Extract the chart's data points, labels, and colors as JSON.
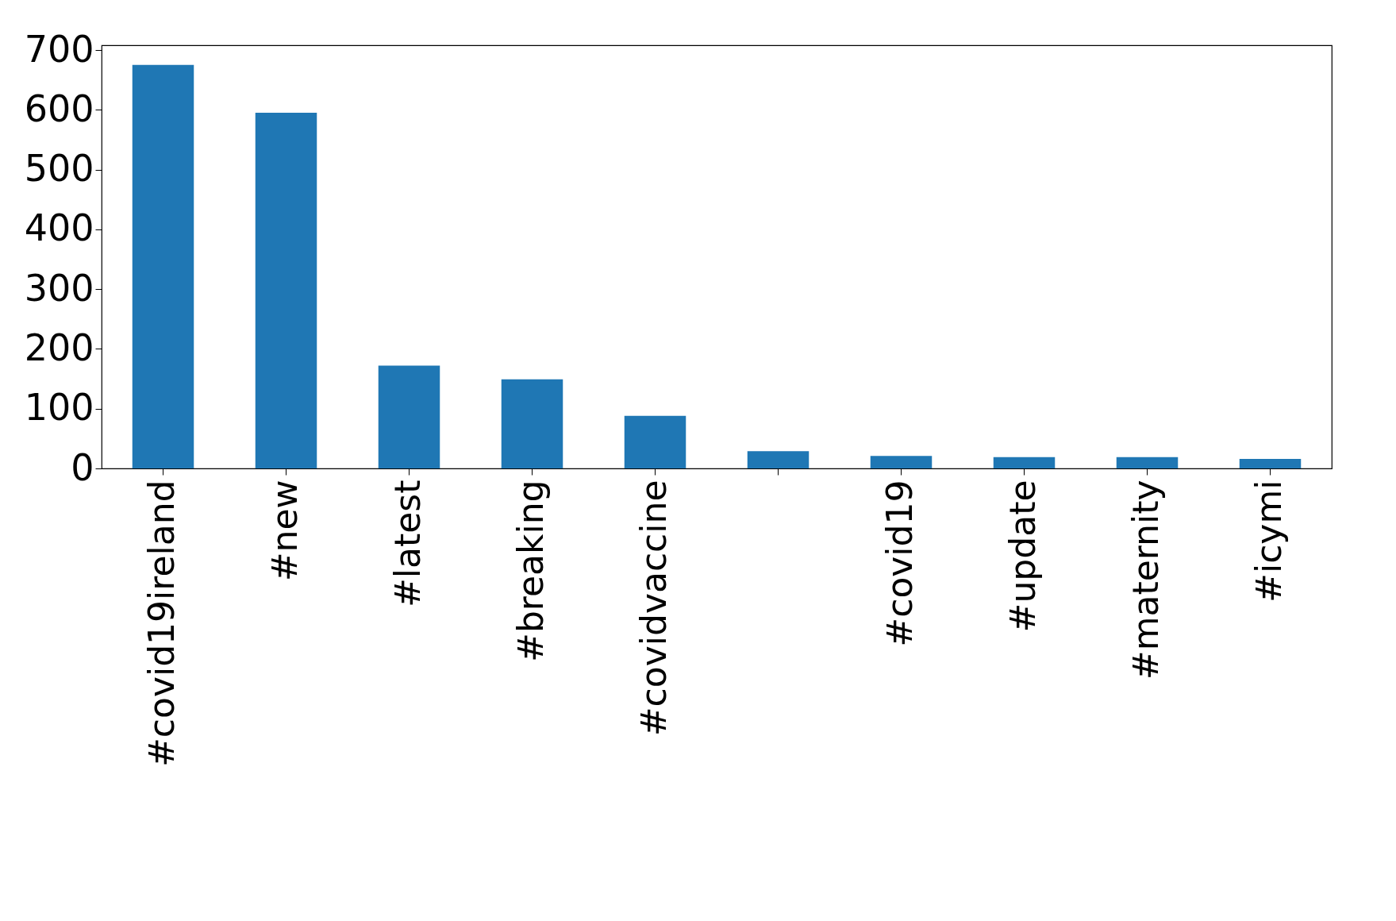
{
  "chart_data": {
    "type": "bar",
    "categories": [
      "#covid19ireland",
      "#new",
      "#latest",
      "#breaking",
      "#covidvaccine",
      null,
      "#covid19",
      "#update",
      "#maternity",
      "#icymi"
    ],
    "values": [
      675,
      595,
      172,
      149,
      88,
      29,
      21,
      19,
      19,
      16
    ],
    "color": "#1f77b4",
    "ylim": [
      0,
      708
    ],
    "yticks": [
      0,
      100,
      200,
      300,
      400,
      500,
      600,
      700
    ],
    "grid": false
  }
}
